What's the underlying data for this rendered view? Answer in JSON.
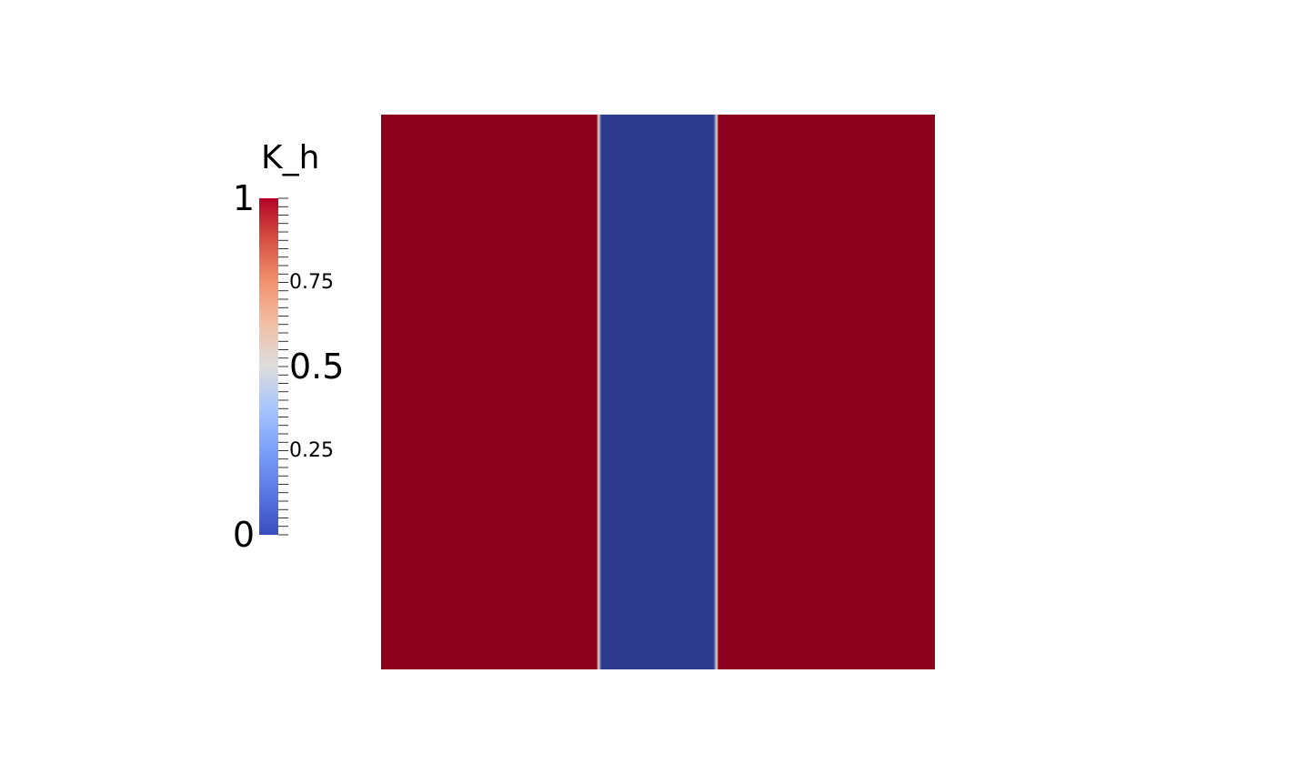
{
  "colorbar": {
    "title": "K_h",
    "range": [
      0,
      1
    ],
    "colormap": "cool-to-warm",
    "colors": {
      "low": "#3b4cc0",
      "mid": "#dddddd",
      "high": "#b40426"
    },
    "labels": [
      {
        "value": 1,
        "text": "1",
        "size": "big"
      },
      {
        "value": 0.75,
        "text": "0.75",
        "size": "small"
      },
      {
        "value": 0.5,
        "text": "0.5",
        "size": "big"
      },
      {
        "value": 0.25,
        "text": "0.25",
        "size": "small"
      },
      {
        "value": 0,
        "text": "0",
        "size": "big"
      }
    ],
    "minor_ticks": 40
  },
  "field": {
    "background_color": "#8d001e",
    "band_color": "#2e3a8c",
    "band_value": 0,
    "background_value": 1,
    "band_edge_colors": [
      "#6e7fb0",
      "#d8d0c0",
      "#b07060"
    ]
  }
}
